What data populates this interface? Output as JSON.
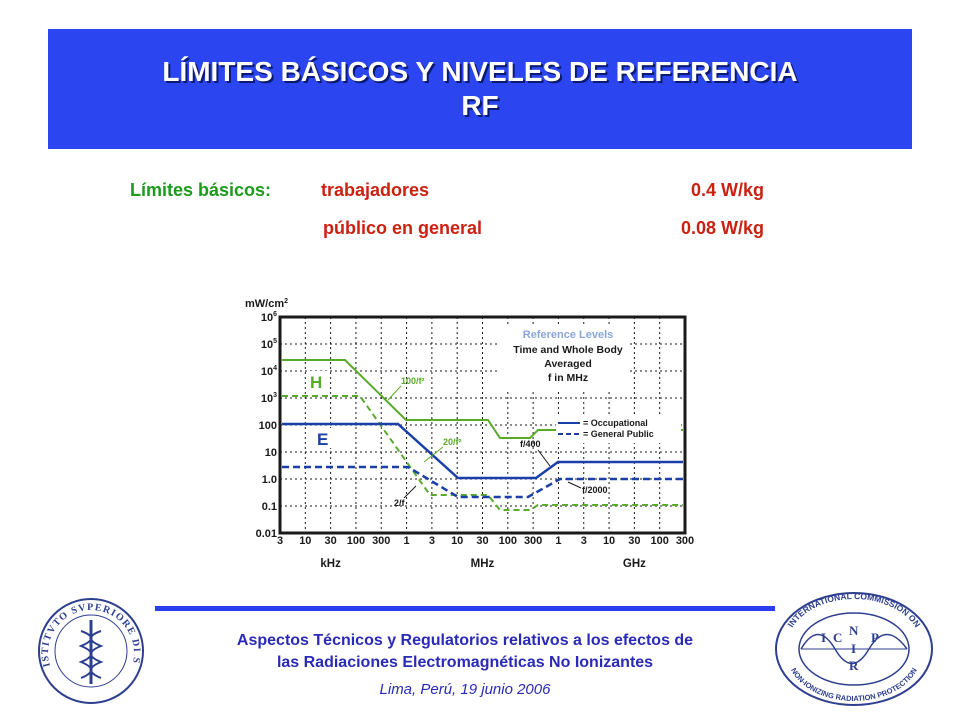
{
  "slide": {
    "title_line1": "LÍMITES BÁSICOS Y NIVELES DE REFERENCIA",
    "title_line2": "RF"
  },
  "basic_limits": {
    "label": "Límites básicos:",
    "rows": [
      {
        "group": "trabajadores",
        "value": "0.4 W/kg"
      },
      {
        "group": "público en general",
        "value": "0.08 W/kg"
      }
    ]
  },
  "figure": {
    "y_unit": "mW/cm2",
    "y_ticks": [
      "10^6",
      "10^5",
      "10^4",
      "10^3",
      "100",
      "10",
      "1.0",
      "0.1",
      "0.01"
    ],
    "x_ticks": [
      "3",
      "10",
      "30",
      "100",
      "300",
      "1",
      "3",
      "10",
      "30",
      "100",
      "300",
      "1",
      "3",
      "10",
      "30",
      "100",
      "300"
    ],
    "x_groups": [
      "kHz",
      "MHz",
      "GHz"
    ],
    "info_title": "Reference Levels",
    "info_lines": [
      "Time and Whole Body",
      "Averaged",
      "f in MHz"
    ],
    "legend": [
      "= Occupational",
      "= General Public"
    ],
    "labels": {
      "h": "H",
      "e": "E",
      "l100": "100/f²",
      "l20": "20/f²",
      "l2": "2/f",
      "lf400": "f/400",
      "lf2000": "f/2000"
    },
    "colors": {
      "e_field": "#1a3fa8",
      "h_field": "#5aaa2a",
      "grid": "#1a1a1a"
    }
  },
  "footer": {
    "line1": "Aspectos Técnicos y Regulatorios relativos a los efectos de",
    "line2": "las Radiaciones Electromagnéticas No Ionizantes",
    "line3": "Lima, Perú, 19 junio 2006"
  },
  "logos": {
    "left_text": "ISTITVTO SVPERIORE DI SANITA",
    "right_top": "INTERNATIONAL COMMISSION ON",
    "right_bottom": "NON-IONIZING RADIATION PROTECTION",
    "right_letters": [
      "I",
      "C",
      "N",
      "I",
      "R",
      "P"
    ]
  }
}
